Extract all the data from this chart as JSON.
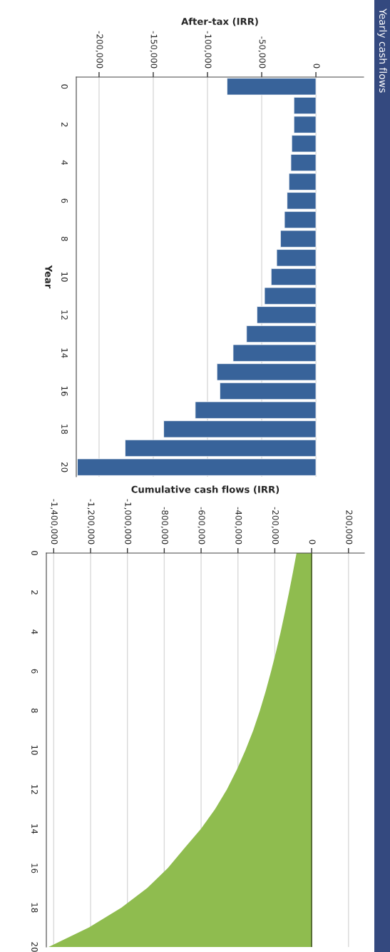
{
  "chart_data": [
    {
      "type": "other",
      "title": "Yearly cash flows",
      "color": "#34497f"
    },
    {
      "type": "bar",
      "xlabel": "After-tax (IRR)",
      "ylabel": "Year",
      "orientation": "horizontal",
      "x": [
        0,
        1,
        2,
        3,
        4,
        5,
        6,
        7,
        8,
        9,
        10,
        11,
        12,
        13,
        14,
        15,
        16,
        17,
        18,
        19,
        20
      ],
      "values": [
        -82000,
        -20300,
        -20300,
        -22300,
        -23100,
        -24900,
        -26600,
        -29000,
        -32700,
        -36200,
        -41300,
        -47400,
        -54400,
        -64000,
        -76400,
        -91300,
        -88600,
        -111300,
        -140400,
        -176000,
        -220000
      ],
      "color": "#38639a",
      "xlim": [
        -221000,
        44000
      ],
      "xticks": [
        {
          "value": -200000,
          "label": "-200,000"
        },
        {
          "value": -150000,
          "label": "-150,000"
        },
        {
          "value": -100000,
          "label": "-100,000"
        },
        {
          "value": -50000,
          "label": "-50,000"
        },
        0
      ],
      "ylim": [
        20.5,
        -0.5
      ],
      "yticks": [
        0,
        2,
        4,
        6,
        8,
        10,
        12,
        14,
        16,
        18,
        20
      ],
      "grid": "x"
    },
    {
      "type": "area",
      "xlabel": "Cumulative cash flows (IRR)",
      "orientation": "horizontal",
      "x": [
        0,
        1,
        2,
        3,
        4,
        5,
        6,
        7,
        8,
        9,
        10,
        11,
        12,
        13,
        14,
        15,
        16,
        17,
        18,
        19,
        20
      ],
      "values": [
        -82000,
        -102000,
        -123000,
        -145000,
        -168000,
        -193000,
        -220000,
        -249000,
        -281000,
        -317000,
        -359000,
        -406000,
        -460000,
        -524000,
        -601000,
        -692000,
        -781000,
        -892000,
        -1032000,
        -1208000,
        -1428000
      ],
      "color": "#8fbc4f",
      "xlim": [
        -1440000,
        286000
      ],
      "xticks": [
        {
          "value": -1400000,
          "label": "-1,400,000"
        },
        {
          "value": -1200000,
          "label": "-1,200,000"
        },
        {
          "value": -1000000,
          "label": "-1,000,000"
        },
        {
          "value": -800000,
          "label": "-800,000"
        },
        {
          "value": -600000,
          "label": "-600,000"
        },
        {
          "value": -400000,
          "label": "-400,000"
        },
        {
          "value": -200000,
          "label": "-200,000"
        },
        0,
        {
          "value": 200000,
          "label": "200,000"
        }
      ],
      "ylim": [
        20,
        0
      ],
      "yticks": [
        0,
        2,
        4,
        6,
        8,
        10,
        12,
        14,
        16,
        18,
        20
      ],
      "grid": "x"
    }
  ]
}
